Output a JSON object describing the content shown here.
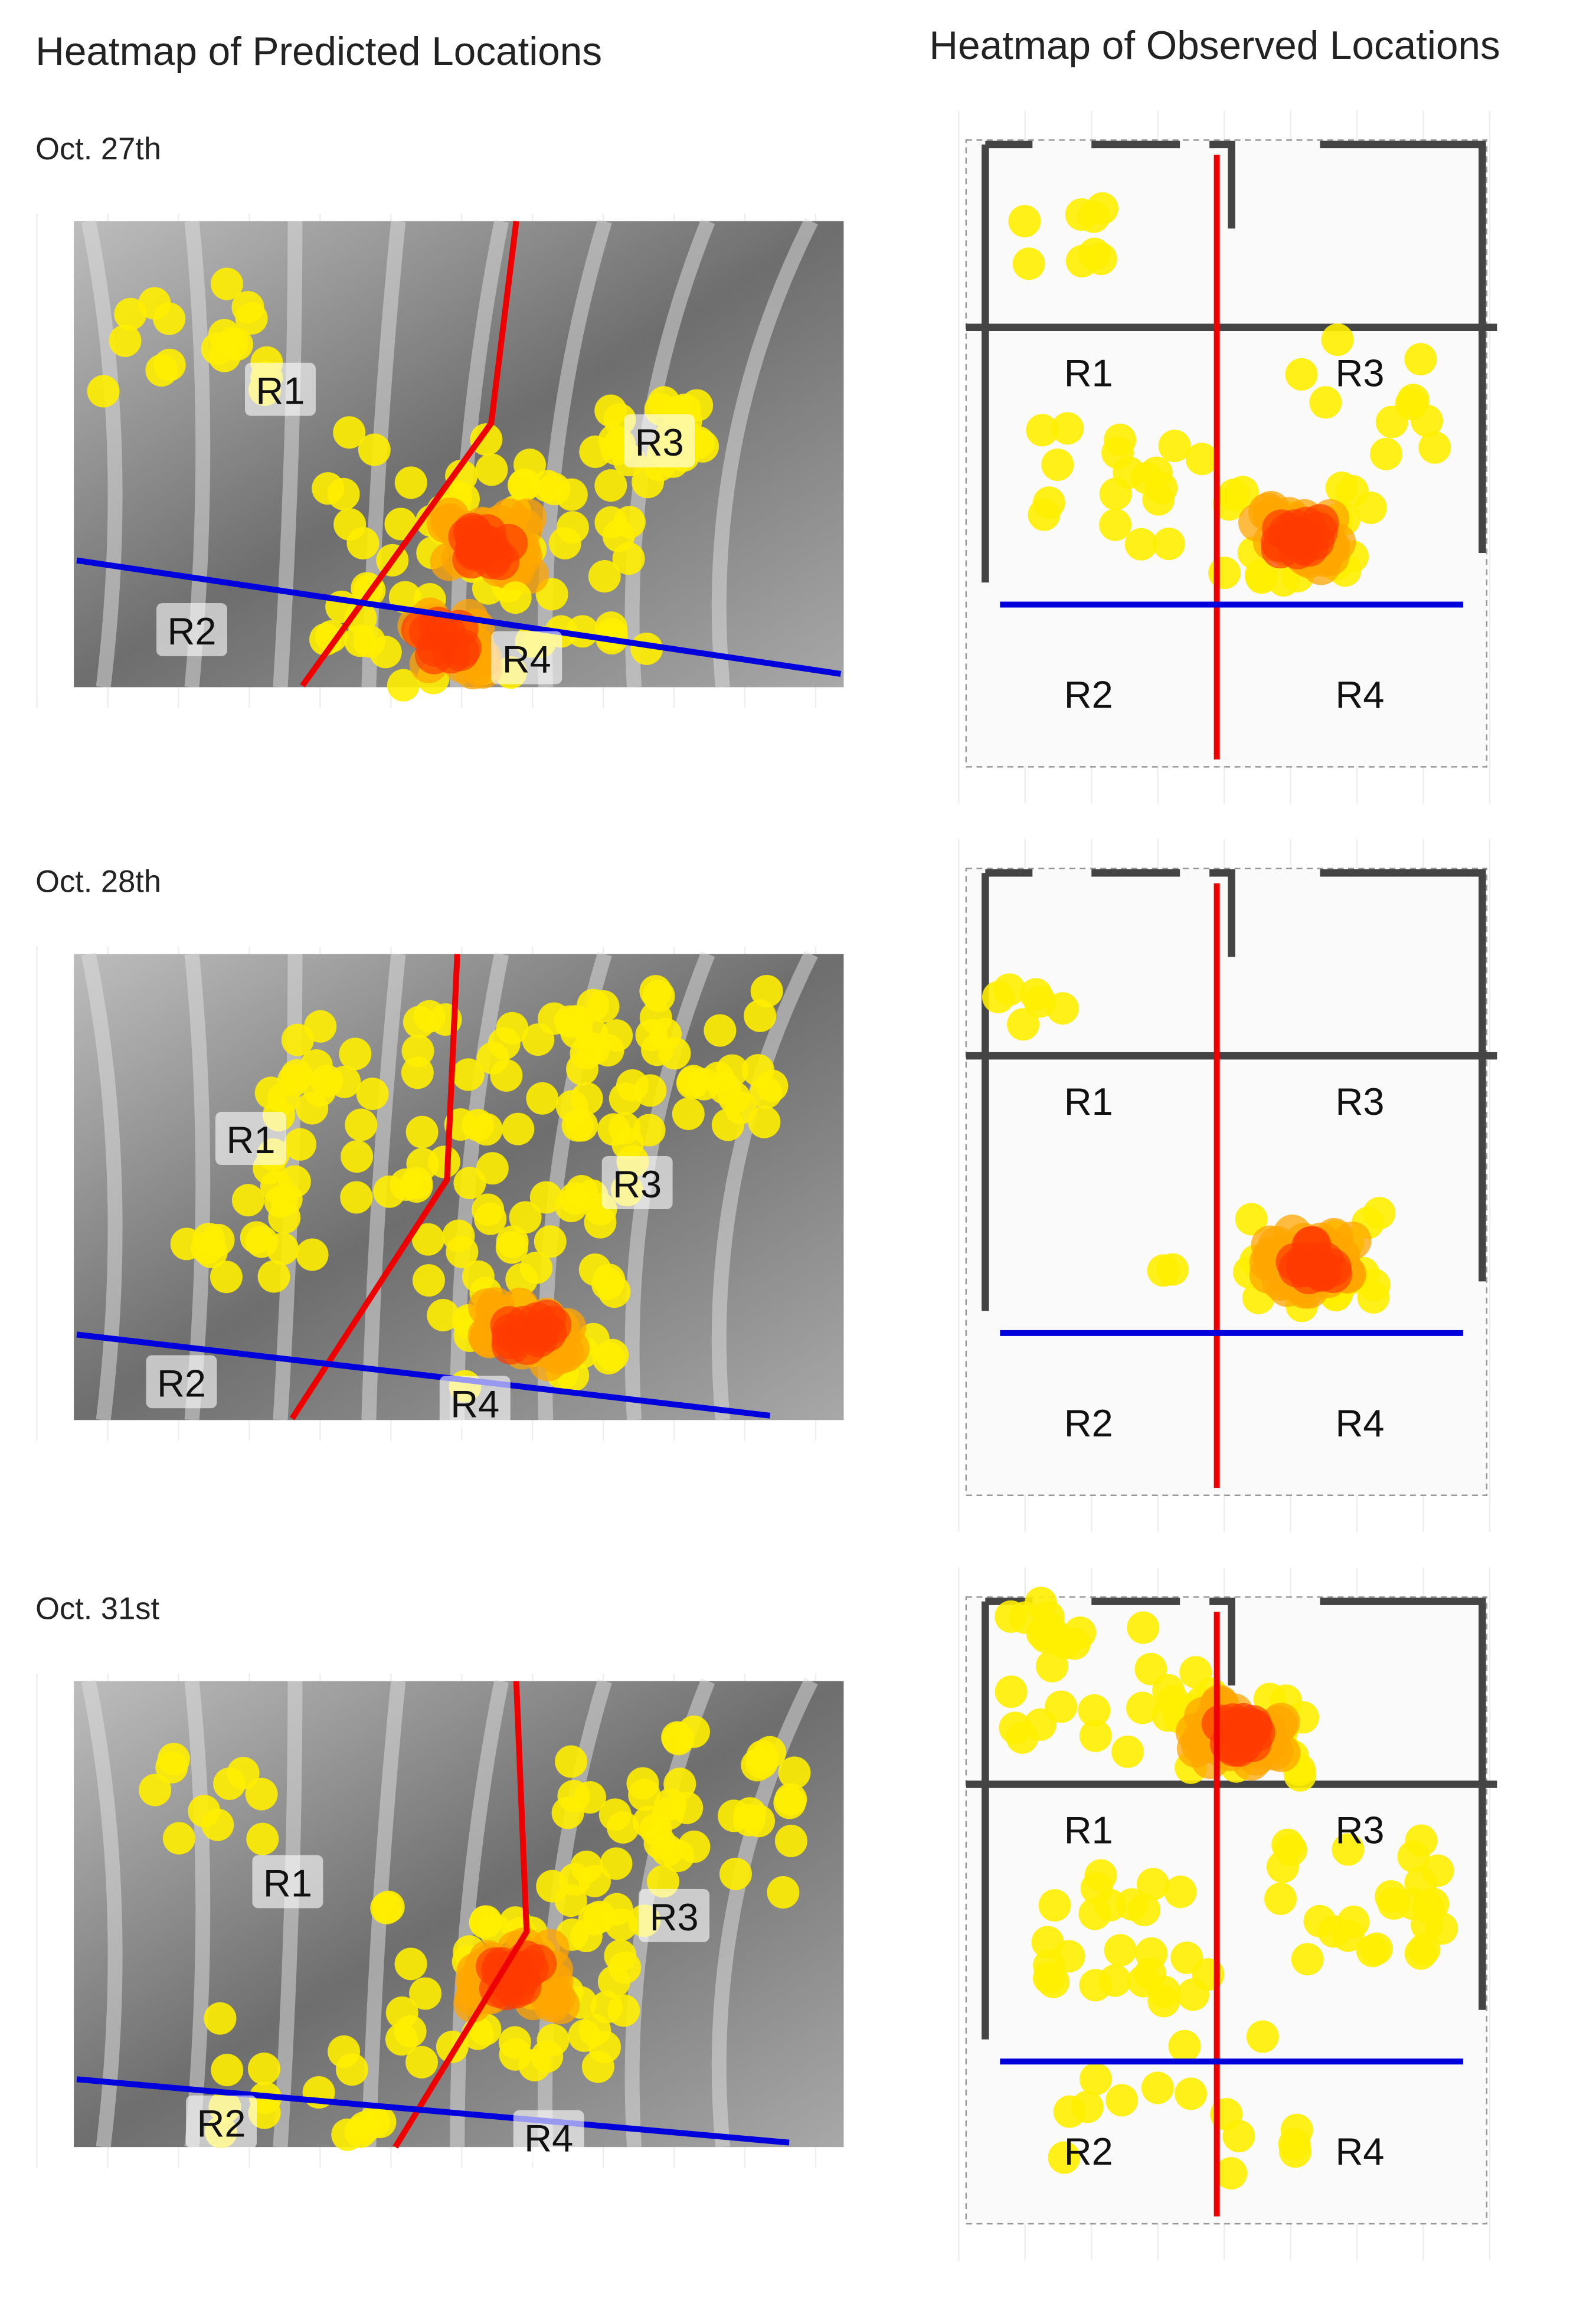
{
  "titles": {
    "predicted": "Heatmap of Predicted Locations",
    "observed": "Heatmap of Observed Locations"
  },
  "rows": [
    {
      "date": "Oct. 27th",
      "predicted_regions": [
        "R1",
        "R2",
        "R3",
        "R4"
      ],
      "observed_regions": [
        "R1",
        "R2",
        "R3",
        "R4"
      ]
    },
    {
      "date": "Oct. 28th",
      "predicted_regions": [
        "R1",
        "R2",
        "R3",
        "R4"
      ],
      "observed_regions": [
        "R1",
        "R2",
        "R3",
        "R4"
      ]
    },
    {
      "date": "Oct. 31st",
      "predicted_regions": [
        "R1",
        "R2",
        "R3",
        "R4"
      ],
      "observed_regions": [
        "R1",
        "R2",
        "R3",
        "R4"
      ]
    }
  ]
}
